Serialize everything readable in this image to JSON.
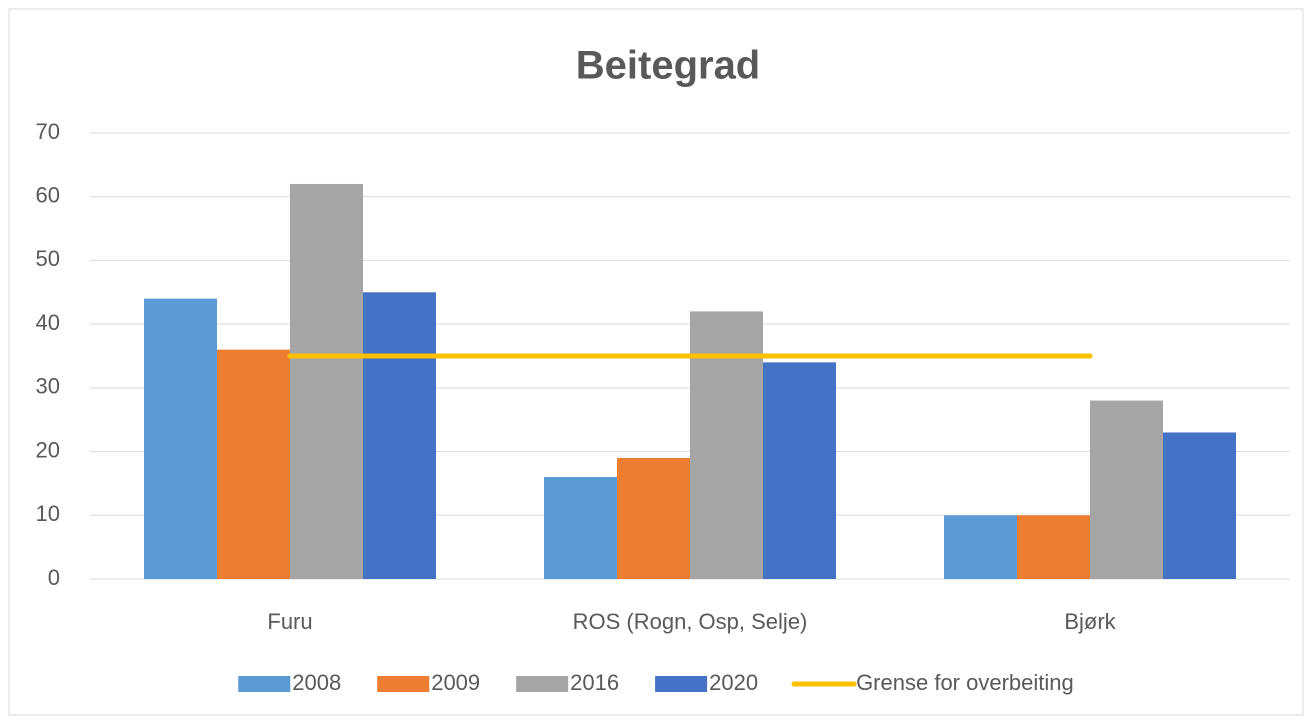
{
  "chart_data": {
    "type": "bar",
    "title": "Beitegrad",
    "categories": [
      "Furu",
      "ROS (Rogn, Osp, Selje)",
      "Bjørk"
    ],
    "series": [
      {
        "name": "2008",
        "color": "#5b9bd5",
        "values": [
          44,
          16,
          10
        ]
      },
      {
        "name": "2009",
        "color": "#ed7d31",
        "values": [
          36,
          19,
          10
        ]
      },
      {
        "name": "2016",
        "color": "#a5a5a5",
        "values": [
          62,
          42,
          28
        ]
      },
      {
        "name": "2020",
        "color": "#4472c4",
        "values": [
          45,
          34,
          23
        ]
      },
      {
        "name": "Grense for overbeiting",
        "color": "#ffc000",
        "type": "line",
        "values": [
          35,
          35,
          35
        ]
      }
    ],
    "ylim": [
      0,
      70
    ],
    "yticks": [
      0,
      10,
      20,
      30,
      40,
      50,
      60,
      70
    ],
    "grid": true,
    "legend": "bottom"
  }
}
